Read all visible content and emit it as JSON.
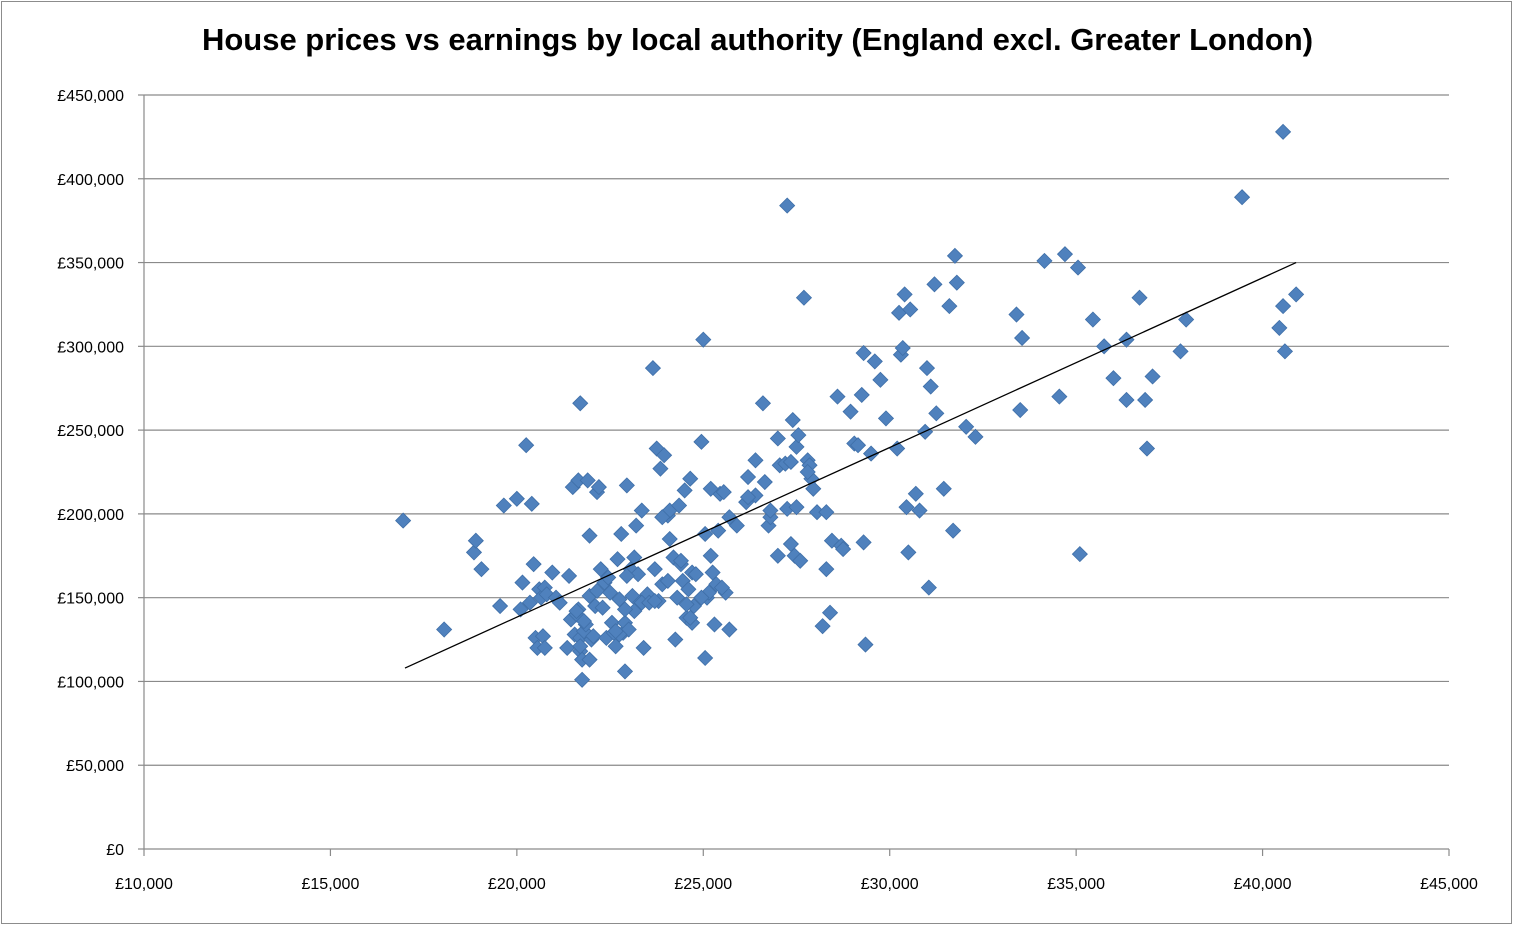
{
  "chart_data": {
    "type": "scatter",
    "title": "House prices vs earnings by local authority (England excl. Greater London)",
    "xlabel": "",
    "ylabel": "",
    "xlim": [
      10000,
      45000
    ],
    "ylim": [
      0,
      450000
    ],
    "x_ticks": [
      10000,
      15000,
      20000,
      25000,
      30000,
      35000,
      40000,
      45000
    ],
    "x_tick_labels": [
      "£10,000",
      "£15,000",
      "£20,000",
      "£25,000",
      "£30,000",
      "£35,000",
      "£40,000",
      "£45,000"
    ],
    "y_ticks": [
      0,
      50000,
      100000,
      150000,
      200000,
      250000,
      300000,
      350000,
      400000,
      450000
    ],
    "y_tick_labels": [
      "£0",
      "£50,000",
      "£100,000",
      "£150,000",
      "£200,000",
      "£250,000",
      "£300,000",
      "£350,000",
      "£400,000",
      "£450,000"
    ],
    "grid": "horizontal",
    "legend": "none",
    "marker_color": "#4F81BD",
    "trendline": {
      "x": [
        17000,
        40900
      ],
      "y": [
        108000,
        350000
      ],
      "color": "#000000"
    },
    "series": [
      {
        "x": [
          16950,
          18050,
          18850,
          18900,
          19050,
          19550,
          19650,
          20000,
          20100,
          20250,
          20400,
          20450,
          20500,
          20550,
          20600,
          20650,
          20700,
          20750,
          20750,
          20800,
          21050,
          21350,
          21400,
          21450,
          21500,
          21550,
          21600,
          21650,
          21650,
          21700,
          21700,
          21700,
          21750,
          21750,
          21800,
          21850,
          21900,
          21950,
          21950,
          21950,
          22000,
          22050,
          22100,
          22150,
          22150,
          22200,
          22250,
          22350,
          22400,
          22500,
          22550,
          22600,
          22650,
          22700,
          22750,
          22800,
          22850,
          22900,
          22900,
          22950,
          23000,
          23050,
          23100,
          23150,
          23200,
          23250,
          23300,
          23350,
          23400,
          23500,
          23650,
          23700,
          23750,
          23800,
          23850,
          23900,
          23950,
          24050,
          24100,
          24200,
          24250,
          24300,
          24350,
          24400,
          24450,
          24500,
          24550,
          24600,
          24650,
          24700,
          24750,
          24800,
          24950,
          25000,
          25050,
          25100,
          25150,
          25200,
          25300,
          25350,
          25400,
          25450,
          25550,
          25600,
          25700,
          25900,
          26150,
          26200,
          26400,
          26400,
          26600,
          26650,
          26750,
          26800,
          27000,
          27050,
          27200,
          27250,
          27250,
          27350,
          27400,
          27450,
          27500,
          27500,
          27550,
          27600,
          27700,
          27800,
          27850,
          27900,
          27950,
          28050,
          28200,
          28300,
          28400,
          28450,
          28600,
          28700,
          28750,
          28950,
          29050,
          29150,
          29250,
          29300,
          29350,
          29500,
          29600,
          29750,
          29900,
          30200,
          30250,
          30300,
          30350,
          30400,
          30450,
          30500,
          30550,
          30700,
          30800,
          30950,
          31000,
          31050,
          31100,
          31200,
          31250,
          31450,
          31600,
          31700,
          31750,
          31800,
          32050,
          32300,
          33400,
          33500,
          33550,
          34150,
          34550,
          34700,
          35050,
          35100,
          35450,
          35750,
          36000,
          36350,
          36350,
          36700,
          36850,
          36900,
          37050,
          37800,
          37950,
          39450,
          40450,
          40550,
          40550,
          40600,
          40900,
          23900,
          24550,
          22300,
          21700,
          24400,
          28300,
          25700,
          26800,
          29300,
          22750,
          23350,
          21600,
          24100,
          25050,
          25250,
          24050,
          27350,
          23150,
          22450,
          26200,
          21800,
          20950,
          20350,
          20150,
          22950,
          24700,
          23550,
          24650,
          25500,
          27000,
          25200,
          27800,
          22650,
          21150,
          24950,
          22900,
          23700
        ],
        "y": [
          196000,
          131000,
          177000,
          184000,
          167000,
          145000,
          205000,
          209000,
          143000,
          241000,
          206000,
          170000,
          126000,
          120000,
          155000,
          150000,
          127000,
          156000,
          120000,
          152000,
          150000,
          120000,
          163000,
          137000,
          216000,
          128000,
          140000,
          220000,
          143000,
          126000,
          266000,
          118000,
          101000,
          113000,
          130000,
          134000,
          220000,
          187000,
          151000,
          113000,
          125000,
          127000,
          145000,
          154000,
          213000,
          216000,
          167000,
          159000,
          126000,
          153000,
          135000,
          129000,
          121000,
          173000,
          149000,
          188000,
          129000,
          135000,
          106000,
          217000,
          131000,
          167000,
          151000,
          174000,
          193000,
          164000,
          147000,
          202000,
          120000,
          152000,
          287000,
          167000,
          239000,
          148000,
          227000,
          158000,
          235000,
          199000,
          202000,
          174000,
          125000,
          150000,
          205000,
          170000,
          160000,
          214000,
          138000,
          155000,
          221000,
          165000,
          145000,
          164000,
          243000,
          304000,
          114000,
          150000,
          153000,
          175000,
          134000,
          158000,
          190000,
          212000,
          213000,
          153000,
          198000,
          193000,
          207000,
          222000,
          232000,
          211000,
          266000,
          219000,
          193000,
          198000,
          245000,
          229000,
          230000,
          203000,
          384000,
          231000,
          256000,
          175000,
          240000,
          204000,
          247000,
          172000,
          329000,
          232000,
          229000,
          221000,
          215000,
          201000,
          133000,
          167000,
          141000,
          184000,
          270000,
          181000,
          179000,
          261000,
          242000,
          241000,
          271000,
          296000,
          122000,
          236000,
          291000,
          280000,
          257000,
          239000,
          320000,
          295000,
          299000,
          331000,
          204000,
          177000,
          322000,
          212000,
          202000,
          249000,
          287000,
          156000,
          276000,
          337000,
          260000,
          215000,
          324000,
          190000,
          354000,
          338000,
          252000,
          246000,
          319000,
          262000,
          305000,
          351000,
          270000,
          355000,
          347000,
          176000,
          316000,
          300000,
          281000,
          268000,
          304000,
          329000,
          268000,
          239000,
          282000,
          297000,
          316000,
          389000,
          311000,
          428000,
          324000,
          297000,
          331000,
          198000,
          146000,
          144000,
          121000,
          172000,
          201000,
          131000,
          202000,
          183000,
          128000,
          147000,
          142000,
          185000,
          188000,
          165000,
          160000,
          182000,
          142000,
          162000,
          210000,
          136000,
          165000,
          147000,
          159000,
          163000,
          135000,
          147000,
          138000,
          156000,
          175000,
          215000,
          225000,
          130000,
          147000,
          150000,
          143000,
          148000
        ]
      }
    ]
  }
}
